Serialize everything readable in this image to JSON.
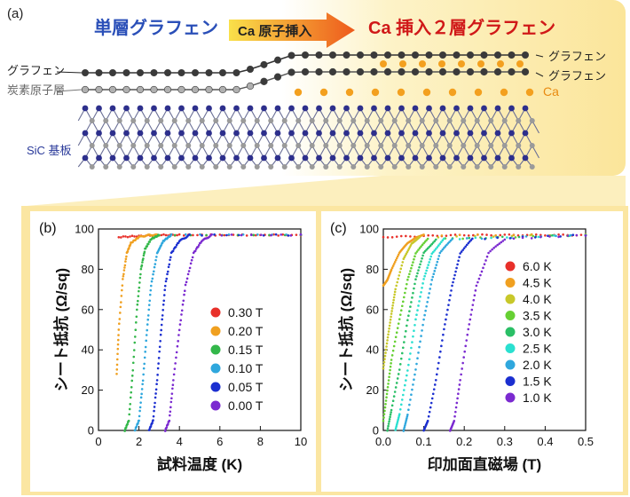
{
  "panel_a": {
    "label": "(a)",
    "left_title": "単層グラフェン",
    "arrow_label": "Ca 原子挿入",
    "right_title": "Ca 挿入２層グラフェン",
    "label_graphene_left": "グラフェン",
    "label_buffer": "炭素原子層",
    "label_sic": "SiC 基板",
    "label_graphene_top": "グラフェン",
    "label_graphene_bottom": "グラフェン",
    "label_ca": "Ca",
    "colors": {
      "left_title": "#2a4fb8",
      "right_title": "#d01818",
      "ca_atom": "#f3a01f",
      "si_atom": "#2d2f8c",
      "carbon_atom": "#9a9a9a",
      "graphene_atom": "#3a3a3a",
      "background_glow": "#fbe9a0"
    }
  },
  "chart_data": [
    {
      "type": "scatter",
      "panel_label": "(b)",
      "xlabel": "試料温度 (K)",
      "ylabel": "シート抵抗 (Ω/sq)",
      "xlim": [
        0,
        10
      ],
      "ylim": [
        0,
        100
      ],
      "xticks": [
        0,
        2,
        4,
        6,
        8,
        10
      ],
      "yticks": [
        0,
        20,
        40,
        60,
        80,
        100
      ],
      "legend_position": "right",
      "series": [
        {
          "name": "0.30 T",
          "color": "#e8302a",
          "x": [
            1.0,
            2.0,
            3.0,
            4.0,
            6.0,
            8.0,
            10.0
          ],
          "y": [
            96,
            96.5,
            97,
            97,
            97,
            97,
            97
          ]
        },
        {
          "name": "0.20 T",
          "color": "#f0a020",
          "x": [
            0.9,
            1.0,
            1.2,
            1.4,
            1.6,
            2.0,
            2.5,
            3.0,
            10.0
          ],
          "y": [
            28,
            50,
            75,
            88,
            93,
            96,
            97,
            97,
            97
          ]
        },
        {
          "name": "0.15 T",
          "color": "#33b74a",
          "x": [
            1.3,
            1.5,
            1.7,
            1.9,
            2.1,
            2.3,
            2.6,
            3.0,
            10.0
          ],
          "y": [
            0,
            5,
            30,
            60,
            80,
            90,
            95,
            97,
            97
          ]
        },
        {
          "name": "0.10 T",
          "color": "#2fa7dd",
          "x": [
            1.8,
            2.0,
            2.2,
            2.4,
            2.6,
            2.9,
            3.2,
            3.6,
            10.0
          ],
          "y": [
            0,
            5,
            25,
            50,
            72,
            88,
            94,
            97,
            97
          ]
        },
        {
          "name": "0.05 T",
          "color": "#1b2fd0",
          "x": [
            2.5,
            2.7,
            2.9,
            3.1,
            3.3,
            3.6,
            4.0,
            4.5,
            10.0
          ],
          "y": [
            0,
            5,
            25,
            50,
            72,
            88,
            94,
            97,
            97
          ]
        },
        {
          "name": "0.00 T",
          "color": "#7b2ad0",
          "x": [
            3.3,
            3.5,
            3.7,
            4.0,
            4.3,
            4.7,
            5.1,
            5.6,
            10.0
          ],
          "y": [
            0,
            5,
            25,
            50,
            72,
            88,
            94,
            97,
            97
          ]
        }
      ]
    },
    {
      "type": "scatter",
      "panel_label": "(c)",
      "xlabel": "印加面直磁場 (T)",
      "ylabel": "シート抵抗 (Ω/sq)",
      "xlim": [
        0,
        0.5
      ],
      "ylim": [
        0,
        100
      ],
      "xticks": [
        0.0,
        0.1,
        0.2,
        0.3,
        0.4,
        0.5
      ],
      "yticks": [
        0,
        20,
        40,
        60,
        80,
        100
      ],
      "legend_position": "right",
      "series": [
        {
          "name": "6.0 K",
          "color": "#e8302a",
          "x": [
            0.0,
            0.1,
            0.2,
            0.3,
            0.4,
            0.5
          ],
          "y": [
            96,
            96.5,
            97,
            97,
            97,
            97
          ]
        },
        {
          "name": "4.5 K",
          "color": "#f0a020",
          "x": [
            0.0,
            0.01,
            0.02,
            0.04,
            0.06,
            0.08,
            0.1,
            0.5
          ],
          "y": [
            72,
            75,
            80,
            88,
            93,
            96,
            97,
            97
          ]
        },
        {
          "name": "4.0 K",
          "color": "#c8c82a",
          "x": [
            0.0,
            0.01,
            0.02,
            0.03,
            0.05,
            0.07,
            0.09,
            0.5
          ],
          "y": [
            31,
            45,
            58,
            70,
            85,
            93,
            96,
            97
          ]
        },
        {
          "name": "3.5 K",
          "color": "#66d033",
          "x": [
            0.0,
            0.01,
            0.02,
            0.04,
            0.06,
            0.08,
            0.11,
            0.5
          ],
          "y": [
            5,
            20,
            35,
            55,
            75,
            88,
            95,
            97
          ]
        },
        {
          "name": "3.0 K",
          "color": "#2abf66",
          "x": [
            0.01,
            0.02,
            0.04,
            0.06,
            0.08,
            0.1,
            0.13,
            0.5
          ],
          "y": [
            0,
            10,
            30,
            55,
            75,
            88,
            95,
            97
          ]
        },
        {
          "name": "2.5 K",
          "color": "#2ae0d0",
          "x": [
            0.03,
            0.04,
            0.06,
            0.08,
            0.1,
            0.12,
            0.15,
            0.5
          ],
          "y": [
            0,
            8,
            30,
            55,
            75,
            88,
            95,
            97
          ]
        },
        {
          "name": "2.0 K",
          "color": "#2fa7dd",
          "x": [
            0.05,
            0.06,
            0.08,
            0.1,
            0.12,
            0.14,
            0.17,
            0.5
          ],
          "y": [
            0,
            8,
            30,
            55,
            75,
            88,
            95,
            97
          ]
        },
        {
          "name": "1.5 K",
          "color": "#1b2fd0",
          "x": [
            0.1,
            0.11,
            0.13,
            0.15,
            0.17,
            0.19,
            0.22,
            0.5
          ],
          "y": [
            0,
            5,
            25,
            50,
            72,
            88,
            95,
            97
          ]
        },
        {
          "name": "1.0 K",
          "color": "#7b2ad0",
          "x": [
            0.165,
            0.175,
            0.19,
            0.21,
            0.23,
            0.26,
            0.3,
            0.5
          ],
          "y": [
            0,
            5,
            25,
            50,
            72,
            88,
            95,
            97
          ]
        }
      ]
    }
  ]
}
